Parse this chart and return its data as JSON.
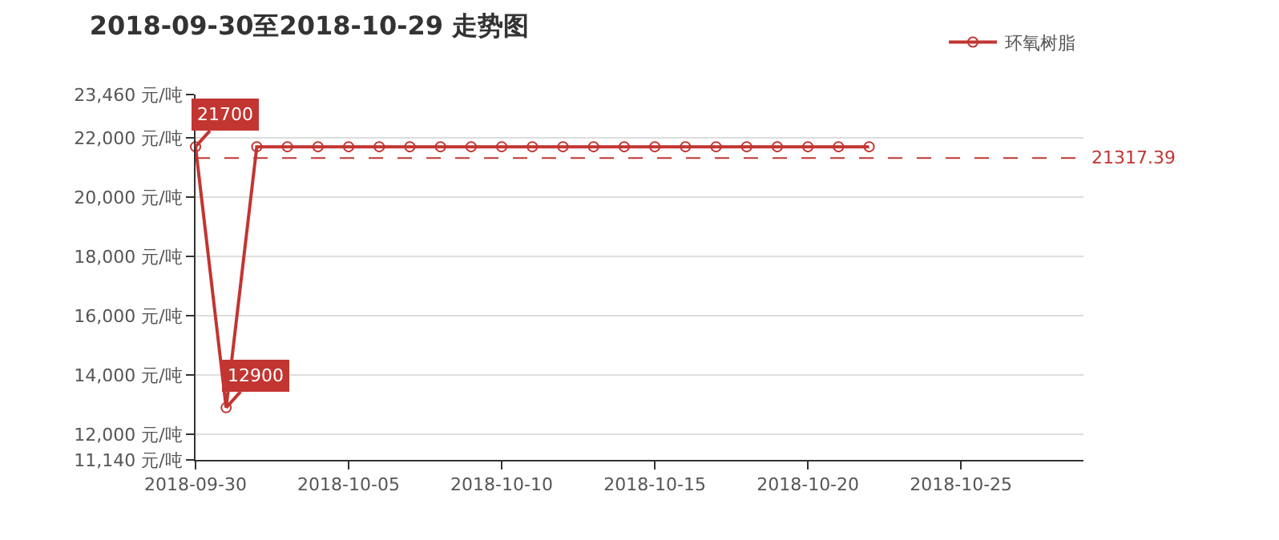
{
  "chart_data": {
    "type": "line",
    "title": "2018-09-30至2018-10-29 走势图",
    "x": [
      "2018-09-30",
      "2018-10-01",
      "2018-10-02",
      "2018-10-03",
      "2018-10-04",
      "2018-10-05",
      "2018-10-06",
      "2018-10-07",
      "2018-10-08",
      "2018-10-09",
      "2018-10-10",
      "2018-10-11",
      "2018-10-12",
      "2018-10-13",
      "2018-10-14",
      "2018-10-15",
      "2018-10-16",
      "2018-10-17",
      "2018-10-18",
      "2018-10-19",
      "2018-10-20",
      "2018-10-21",
      "2018-10-22"
    ],
    "series": [
      {
        "name": "环氧树脂",
        "color": "#c23531",
        "values": [
          21700,
          12900,
          21700,
          21700,
          21700,
          21700,
          21700,
          21700,
          21700,
          21700,
          21700,
          21700,
          21700,
          21700,
          21700,
          21700,
          21700,
          21700,
          21700,
          21700,
          21700,
          21700,
          21700
        ]
      }
    ],
    "xlim": [
      "2018-09-30",
      "2018-10-29"
    ],
    "xticks": [
      "2018-09-30",
      "2018-10-05",
      "2018-10-10",
      "2018-10-15",
      "2018-10-20",
      "2018-10-25"
    ],
    "ylim": [
      11140,
      23460
    ],
    "yticks": [
      {
        "value": 11140,
        "label": "11,140 元/吨"
      },
      {
        "value": 12000,
        "label": "12,000 元/吨"
      },
      {
        "value": 14000,
        "label": "14,000 元/吨"
      },
      {
        "value": 16000,
        "label": "16,000 元/吨"
      },
      {
        "value": 18000,
        "label": "18,000 元/吨"
      },
      {
        "value": 20000,
        "label": "20,000 元/吨"
      },
      {
        "value": 22000,
        "label": "22,000 元/吨"
      },
      {
        "value": 23460,
        "label": "23,460 元/吨"
      }
    ],
    "annotations": [
      {
        "text": "21700",
        "x": "2018-09-30",
        "y": 21700
      },
      {
        "text": "12900",
        "x": "2018-10-01",
        "y": 12900
      }
    ],
    "ref_lines": [
      {
        "axis": "y",
        "value": 21317.39,
        "label": "21317.39",
        "color": "#c23531",
        "line_style": "dashed"
      }
    ],
    "grid": "y",
    "legend": "top right",
    "marker": "circle",
    "line_style": "solid"
  }
}
